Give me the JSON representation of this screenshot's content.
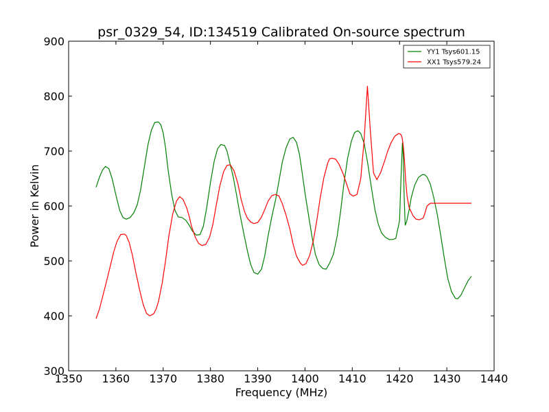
{
  "chart_data": {
    "type": "line",
    "title": "psr_0329_54, ID:134519 Calibrated On-source spectrum",
    "xlabel": "Frequency (MHz)",
    "ylabel": "Power in Kelvin",
    "xlim": [
      1350,
      1440
    ],
    "ylim": [
      300,
      900
    ],
    "xticks": [
      1350,
      1360,
      1370,
      1380,
      1390,
      1400,
      1410,
      1420,
      1430,
      1440
    ],
    "yticks": [
      300,
      400,
      500,
      600,
      700,
      800,
      900
    ],
    "grid": false,
    "legend_position": "top-right",
    "series": [
      {
        "name": "YY1 Tsys601.15",
        "color": "#008000",
        "x": [
          1355.8,
          1356.5,
          1357.2,
          1357.8,
          1358.5,
          1359.2,
          1360.0,
          1360.8,
          1361.5,
          1362.2,
          1363.0,
          1363.8,
          1364.5,
          1365.2,
          1366.0,
          1366.8,
          1367.5,
          1368.2,
          1369.0,
          1369.5,
          1370.0,
          1370.5,
          1371.0,
          1371.8,
          1372.5,
          1373.2,
          1374.0,
          1374.8,
          1375.5,
          1376.2,
          1377.0,
          1377.8,
          1378.5,
          1379.2,
          1380.0,
          1380.8,
          1381.5,
          1382.2,
          1383.0,
          1383.5,
          1384.0,
          1384.8,
          1385.5,
          1386.2,
          1387.0,
          1387.8,
          1388.5,
          1389.2,
          1390.0,
          1390.8,
          1391.5,
          1392.2,
          1393.0,
          1393.8,
          1394.5,
          1395.2,
          1396.0,
          1396.8,
          1397.5,
          1398.2,
          1398.8,
          1399.3,
          1400.0,
          1400.8,
          1401.5,
          1402.2,
          1403.0,
          1403.8,
          1404.5,
          1405.2,
          1406.0,
          1406.8,
          1407.5,
          1408.2,
          1409.0,
          1409.8,
          1410.5,
          1411.2,
          1411.8,
          1412.5,
          1413.2,
          1414.0,
          1414.8,
          1415.5,
          1416.2,
          1417.0,
          1417.8,
          1418.5,
          1419.2,
          1420.0,
          1420.3,
          1420.6,
          1420.8,
          1421.0,
          1421.2,
          1421.5,
          1422.0,
          1422.5,
          1423.2,
          1424.0,
          1424.8,
          1425.3,
          1425.8,
          1426.5,
          1427.2,
          1428.0,
          1428.8,
          1429.5,
          1430.2,
          1431.0,
          1431.8,
          1432.3,
          1433.0,
          1433.8,
          1434.5,
          1435.2
        ],
        "values": [
          634,
          652,
          666,
          672,
          668,
          650,
          620,
          592,
          579,
          576,
          579,
          588,
          602,
          628,
          670,
          712,
          738,
          752,
          753,
          748,
          733,
          706,
          668,
          621,
          592,
          580,
          579,
          574,
          565,
          554,
          547,
          548,
          563,
          597,
          643,
          682,
          704,
          712,
          710,
          700,
          682,
          654,
          621,
          587,
          552,
          519,
          494,
          479,
          476,
          485,
          510,
          546,
          581,
          612,
          646,
          680,
          706,
          722,
          725,
          716,
          695,
          667,
          624,
          580,
          543,
          512,
          493,
          486,
          485,
          496,
          512,
          545,
          588,
          638,
          686,
          718,
          734,
          737,
          732,
          714,
          681,
          636,
          593,
          567,
          551,
          543,
          539,
          539,
          541,
          573,
          650,
          715,
          690,
          610,
          565,
          572,
          592,
          616,
          638,
          652,
          657,
          657,
          653,
          640,
          617,
          584,
          542,
          503,
          468,
          444,
          432,
          431,
          438,
          452,
          464,
          472
        ]
      },
      {
        "name": "XX1 Tsys579.24",
        "color": "#ff0000",
        "x": [
          1355.8,
          1356.5,
          1357.2,
          1358.0,
          1358.8,
          1359.5,
          1360.2,
          1361.0,
          1361.8,
          1362.2,
          1362.8,
          1363.5,
          1364.2,
          1365.0,
          1365.8,
          1366.5,
          1367.2,
          1368.0,
          1368.5,
          1369.0,
          1369.8,
          1370.5,
          1371.2,
          1372.0,
          1372.8,
          1373.5,
          1374.2,
          1375.0,
          1375.5,
          1376.0,
          1376.8,
          1377.5,
          1378.2,
          1379.0,
          1379.8,
          1380.5,
          1381.2,
          1382.0,
          1382.8,
          1383.5,
          1384.2,
          1385.0,
          1385.8,
          1386.5,
          1387.2,
          1387.8,
          1388.5,
          1389.2,
          1390.0,
          1390.8,
          1391.5,
          1392.2,
          1393.0,
          1393.8,
          1394.5,
          1395.2,
          1396.0,
          1396.8,
          1397.5,
          1398.2,
          1399.0,
          1399.5,
          1400.2,
          1401.0,
          1401.8,
          1402.5,
          1403.2,
          1404.0,
          1404.8,
          1405.2,
          1405.8,
          1406.5,
          1407.2,
          1408.0,
          1408.8,
          1409.5,
          1410.2,
          1411.0,
          1411.8,
          1412.5,
          1413.2,
          1413.8,
          1414.5,
          1415.2,
          1416.0,
          1416.8,
          1417.5,
          1418.2,
          1419.0,
          1419.8,
          1420.2,
          1420.5,
          1420.7,
          1420.9,
          1421.1,
          1421.3,
          1421.6,
          1422.0,
          1422.8,
          1423.5,
          1424.2,
          1425.0,
          1425.3,
          1425.8,
          1426.5,
          1427.2,
          1428.0,
          1428.8,
          1429.5,
          1430.2,
          1431.0,
          1431.8,
          1432.5,
          1433.2,
          1434.0,
          1434.8,
          1435.2
        ],
        "values": [
          395,
          412,
          435,
          462,
          490,
          515,
          535,
          548,
          549,
          546,
          534,
          510,
          480,
          448,
          420,
          404,
          400,
          404,
          412,
          426,
          460,
          500,
          545,
          585,
          609,
          617,
          612,
          596,
          581,
          563,
          543,
          532,
          528,
          530,
          543,
          566,
          600,
          637,
          663,
          674,
          675,
          664,
          641,
          612,
          590,
          578,
          571,
          568,
          570,
          580,
          594,
          609,
          619,
          621,
          618,
          604,
          583,
          558,
          530,
          509,
          496,
          492,
          495,
          510,
          538,
          574,
          614,
          652,
          678,
          686,
          687,
          685,
          676,
          660,
          640,
          622,
          618,
          621,
          650,
          720,
          818,
          740,
          660,
          648,
          661,
          681,
          700,
          715,
          727,
          732,
          731,
          726,
          716,
          700,
          675,
          646,
          618,
          598,
          583,
          576,
          575,
          578,
          585,
          600,
          605,
          605,
          605,
          605,
          605,
          605,
          605,
          605,
          605,
          605,
          605,
          605,
          605
        ]
      }
    ]
  }
}
